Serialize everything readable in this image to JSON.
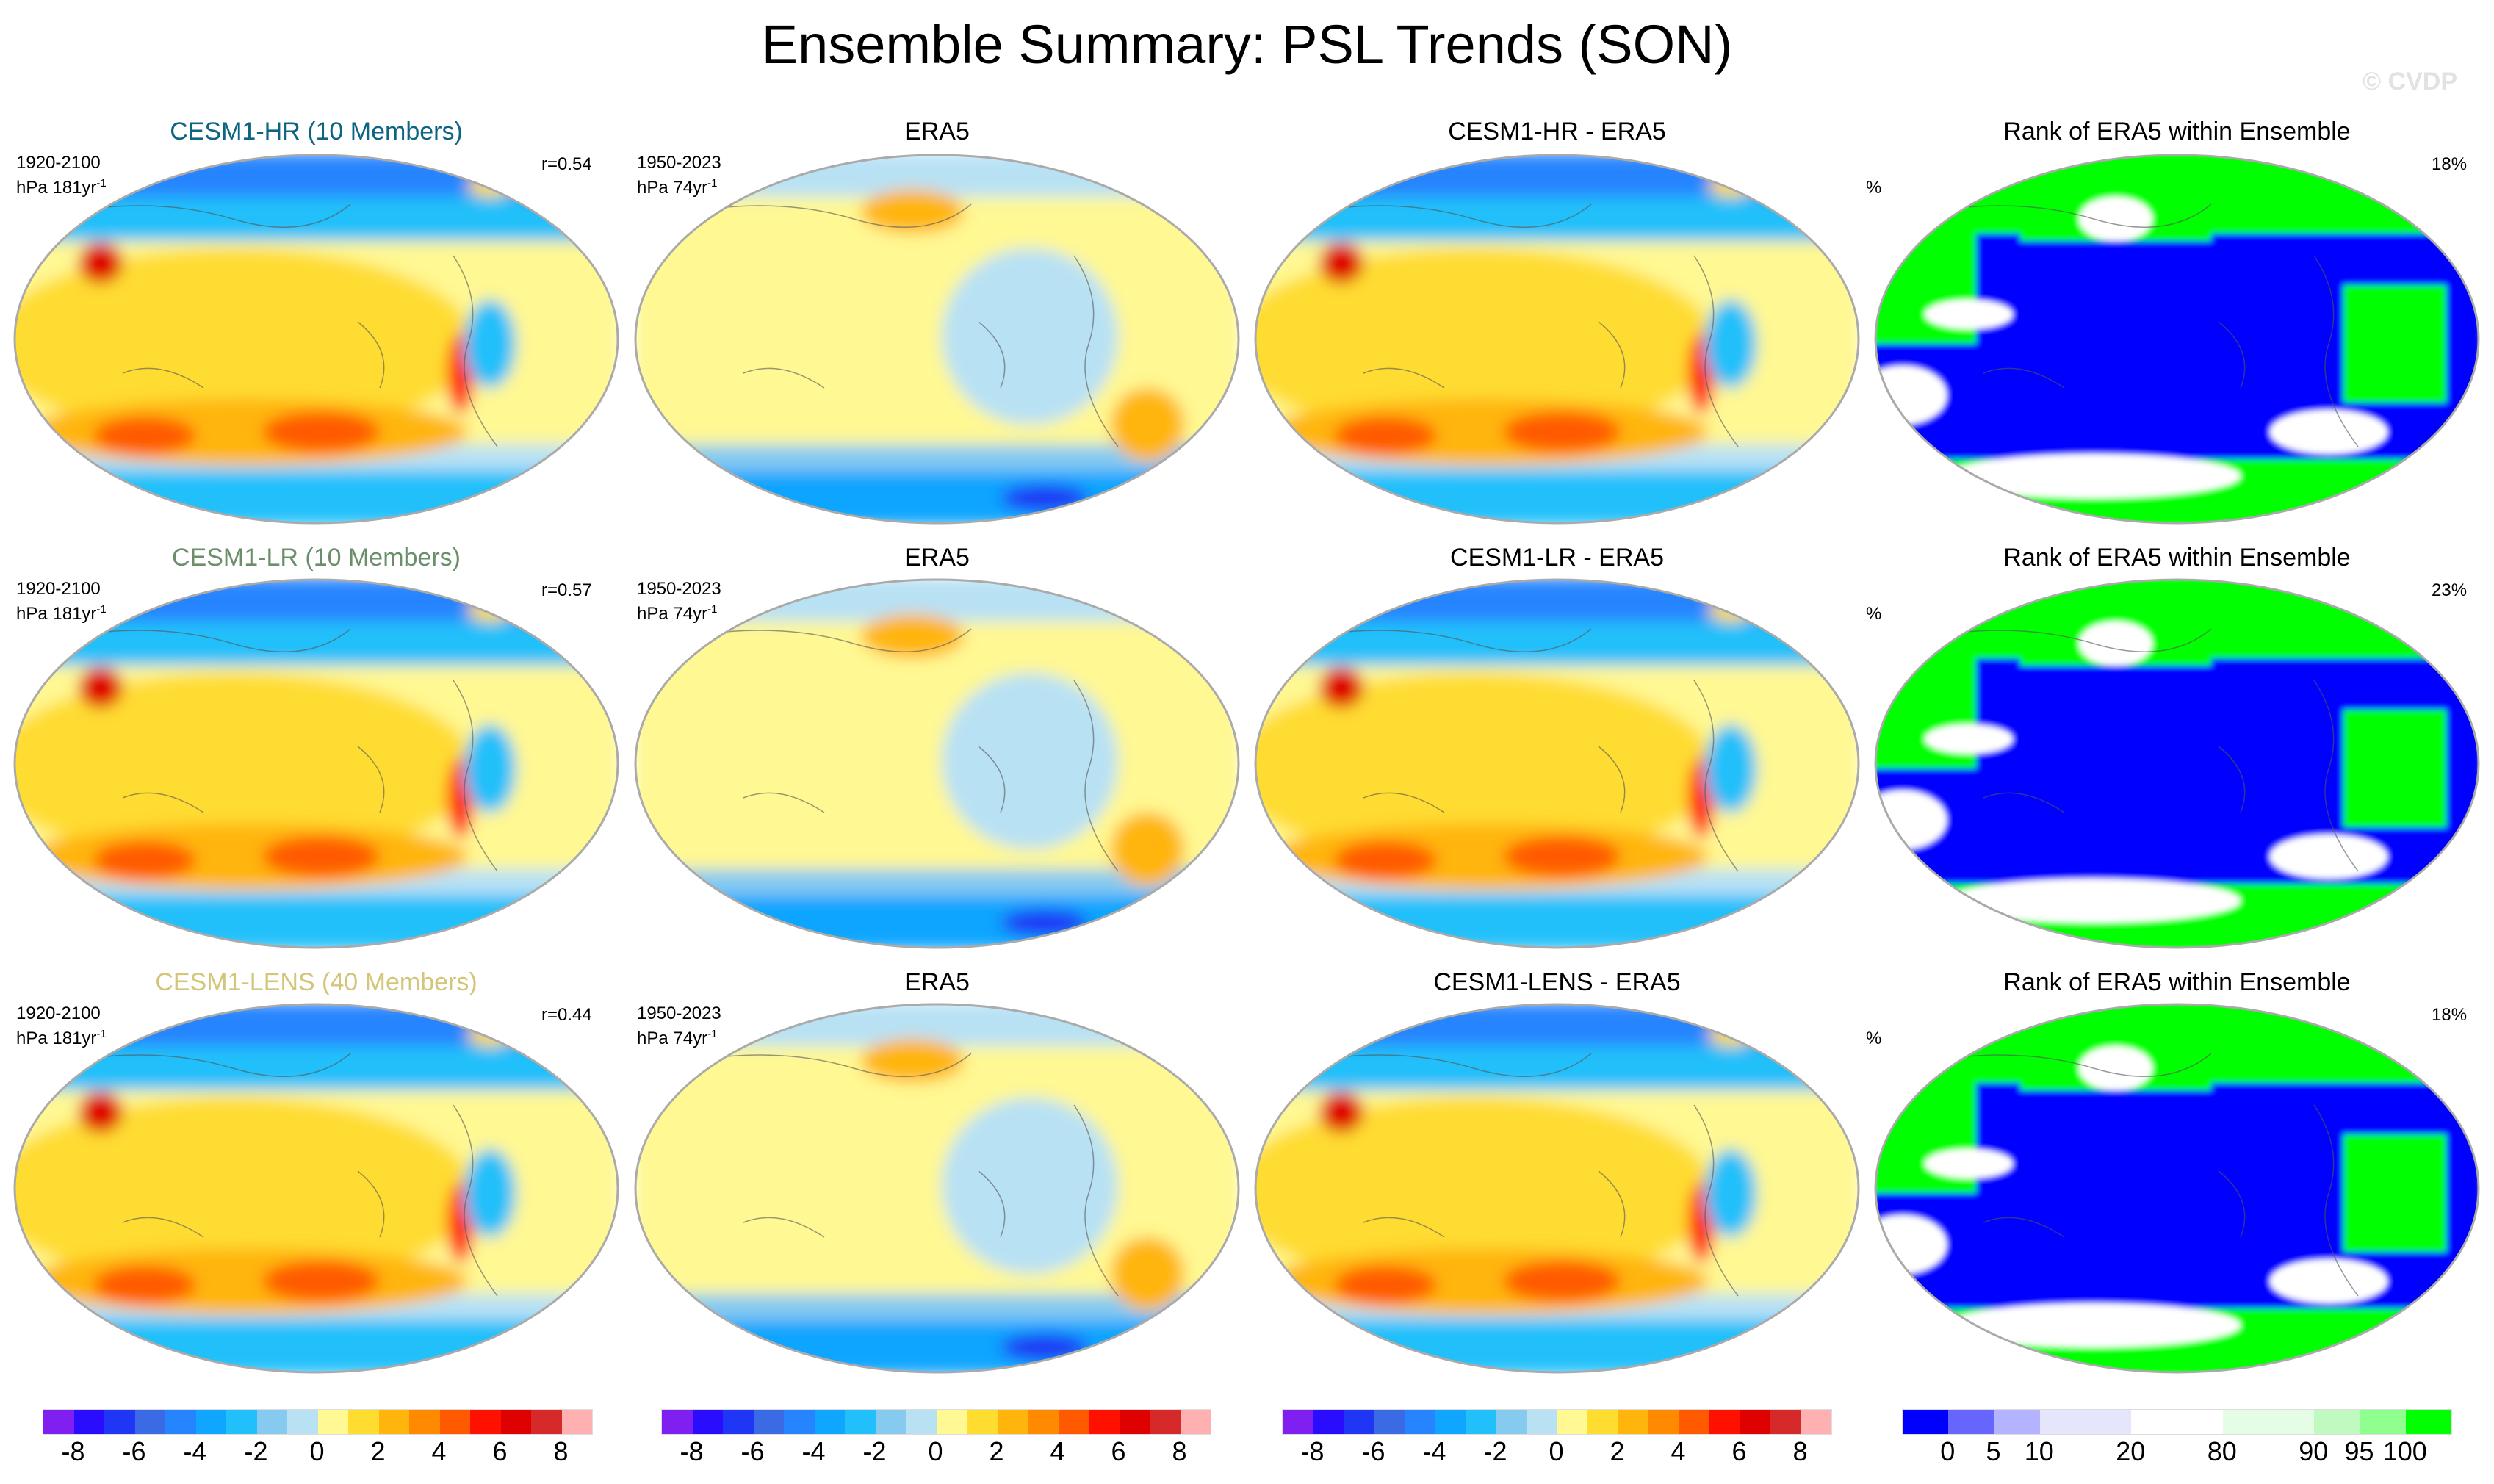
{
  "title": "Ensemble Summary: PSL Trends (SON)",
  "watermark": "© CVDP",
  "rows": [
    {
      "model_title": "CESM1-HR (10 Members)",
      "title_color": "#0e6582",
      "model_period": "1920-2100",
      "model_units": "hPa 181yr",
      "r": "r=0.54",
      "obs_title": "ERA5",
      "obs_period": "1950-2023",
      "obs_units": "hPa 74yr",
      "diff_title": "CESM1-HR - ERA5",
      "rank_title": "Rank of ERA5 within Ensemble",
      "rank_pct": "18%",
      "rank_unit": "%"
    },
    {
      "model_title": "CESM1-LR (10 Members)",
      "title_color": "#6a8f6a",
      "model_period": "1920-2100",
      "model_units": "hPa 181yr",
      "r": "r=0.57",
      "obs_title": "ERA5",
      "obs_period": "1950-2023",
      "obs_units": "hPa 74yr",
      "diff_title": "CESM1-LR - ERA5",
      "rank_title": "Rank of ERA5 within Ensemble",
      "rank_pct": "23%",
      "rank_unit": "%"
    },
    {
      "model_title": "CESM1-LENS (40 Members)",
      "title_color": "#d3c67a",
      "model_period": "1920-2100",
      "model_units": "hPa 181yr",
      "r": "r=0.44",
      "obs_title": "ERA5",
      "obs_period": "1950-2023",
      "obs_units": "hPa 74yr",
      "diff_title": "CESM1-LENS - ERA5",
      "rank_title": "Rank of ERA5 within Ensemble",
      "rank_pct": "18%",
      "rank_unit": "%"
    }
  ],
  "exponent": "-1",
  "chart_data": {
    "type": "heatmap",
    "title": "Ensemble Summary: PSL Trends (SON)",
    "trend_colorbar": {
      "units": "hPa",
      "colors": [
        "#8020f0",
        "#2a0cff",
        "#1f36f5",
        "#3a6ae4",
        "#2784ff",
        "#10a5ff",
        "#22c0fa",
        "#86caf0",
        "#b8e1f4",
        "#fff893",
        "#ffdc30",
        "#ffb50c",
        "#ff8a00",
        "#ff5a00",
        "#ff1100",
        "#df0000",
        "#d62a2a",
        "#ffb1b1"
      ],
      "labels": [
        "-8",
        "-6",
        "-4",
        "-2",
        "0",
        "2",
        "4",
        "6",
        "8"
      ],
      "range": [
        -8,
        8
      ]
    },
    "rank_colorbar": {
      "units": "%",
      "colors": [
        "#0000ff",
        "#6666ff",
        "#b3b3ff",
        "#e5e5fb",
        "#ffffff",
        "#e4fde4",
        "#c1fac1",
        "#8fff8f",
        "#00ff00"
      ],
      "labels": [
        "0",
        "5",
        "10",
        "20",
        "80",
        "90",
        "95",
        "100"
      ]
    }
  }
}
